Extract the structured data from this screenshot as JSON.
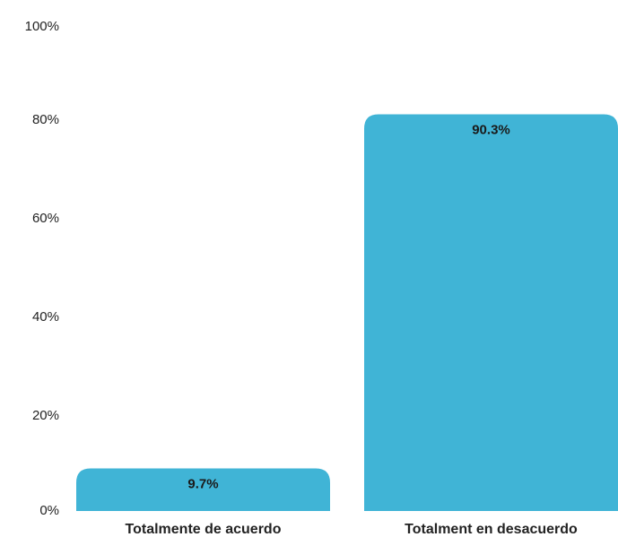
{
  "chart_data": {
    "type": "bar",
    "title": "",
    "xlabel": "",
    "ylabel": "",
    "categories": [
      "Totalmente de acuerdo",
      "Totalment en desacuerdo"
    ],
    "values": [
      9.7,
      90.3
    ],
    "data_labels": [
      "9.7%",
      "90.3%"
    ],
    "ylim": [
      0,
      100
    ],
    "y_ticks": [
      0,
      20,
      40,
      60,
      80,
      100
    ],
    "y_tick_labels": [
      "0%",
      "20%",
      "40%",
      "60%",
      "80%",
      "100%"
    ],
    "grid": false,
    "legend": "none",
    "bar_color": "#40b4d6"
  }
}
